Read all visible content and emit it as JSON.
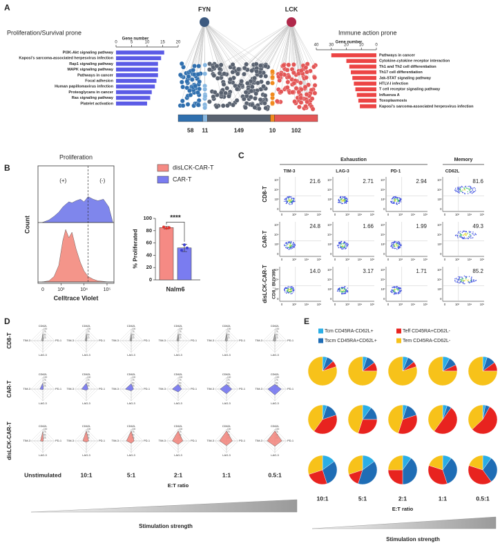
{
  "chart_data": [
    {
      "type": "hbar",
      "panel": "A",
      "title": "Proliferation/Survival prone",
      "xlabel": "Gene number",
      "categories": [
        "PI3K-Akt signaling pathway",
        "Kaposi's sarcoma-associated herpesvirus infection",
        "Rap1 signaling pathway",
        "MAPK signaling pathway",
        "Pathways in cancer",
        "Focal adhesion",
        "Human papillomavirus infection",
        "Proteoglycans in cancer",
        "Ras signaling pathway",
        "Platelet activation"
      ],
      "values": [
        15.5,
        14.5,
        13.5,
        13.5,
        13.5,
        13,
        12.5,
        11.5,
        11,
        10
      ],
      "color": "#5b5be6",
      "xlim": [
        0,
        20
      ],
      "xticks": [
        0,
        5,
        10,
        15,
        20
      ]
    },
    {
      "type": "hbar",
      "title": "Immune action prone",
      "xlabel": "Gene number",
      "categories": [
        "Pathways in cancer",
        "Cytokine-cytokine receptor interaction",
        "Th1 and Th2 cell differentiation",
        "Th17 cell differentiation",
        "Jak-STAT signaling pathway",
        "HTLV-I infection",
        "T cell receptor signaling pathway",
        "Influenza A",
        "Toxoplasmosis",
        "Kaposi's sarcoma-associated herpesvirus infection"
      ],
      "values": [
        30,
        20,
        18,
        17,
        16,
        15,
        14,
        13,
        12,
        11
      ],
      "color": "#ec4444",
      "xlim": [
        40,
        0
      ],
      "xticks": [
        40,
        30,
        20,
        10,
        0
      ]
    },
    {
      "type": "segments",
      "nodes": [
        "FYN",
        "LCK"
      ],
      "node_colors": [
        "#3d5a80",
        "#b0284a"
      ],
      "values": [
        58,
        11,
        149,
        10,
        102
      ],
      "colors": [
        "#2f6fae",
        "#86b6e0",
        "#596270",
        "#f08a1e",
        "#e35656"
      ]
    },
    {
      "type": "density",
      "panel": "B",
      "title": "Proliferation",
      "xlabel": "Celltrace Violet",
      "ylabel": "Count",
      "log_x": true,
      "xlim": [
        100,
        200000
      ],
      "xticks": [
        {
          "value": 1000,
          "label": "10³"
        },
        {
          "value": 10000,
          "label": "10⁴"
        },
        {
          "value": 100000,
          "label": "10⁵"
        }
      ],
      "zero_label": "0",
      "gate": 15000,
      "annotations": [
        "(+)",
        "(-)"
      ],
      "x": [
        150,
        300,
        500,
        800,
        1200,
        1600,
        2200,
        3000,
        4500,
        7000,
        10000,
        15000,
        25000,
        40000,
        70000,
        120000,
        180000
      ],
      "series": [
        {
          "color": "#7f86ec",
          "values": [
            0,
            0.05,
            0.12,
            0.2,
            0.3,
            0.35,
            0.4,
            0.38,
            0.42,
            0.45,
            0.4,
            0.5,
            0.45,
            0.42,
            0.45,
            0.3,
            0
          ]
        },
        {
          "color": "#f4958a",
          "values": [
            0,
            0.02,
            0.1,
            0.3,
            0.75,
            0.95,
            0.8,
            0.9,
            0.6,
            0.35,
            0.2,
            0.1,
            0.05,
            0.02,
            0.01,
            0,
            0
          ]
        }
      ]
    },
    {
      "type": "bar",
      "categories": [
        "Nalm6"
      ],
      "ylabel": "% Proliferated",
      "ylim": [
        0,
        100
      ],
      "yticks": [
        0,
        20,
        40,
        60,
        80,
        100
      ],
      "significance": "****",
      "series": [
        {
          "name": "disLCK-CAR-T",
          "color": "#f58a84",
          "values": [
            85
          ],
          "errors": [
            2
          ],
          "points": [
            86,
            84,
            85
          ]
        },
        {
          "name": "CAR-T",
          "color": "#7a7cf0",
          "values": [
            52
          ],
          "errors": [
            6
          ],
          "points": [
            48,
            57,
            52
          ]
        }
      ]
    },
    {
      "type": "flow-grid",
      "panel": "C",
      "groups": [
        "Exhaustion",
        "Memory"
      ],
      "columns": [
        "TIM-3",
        "LAG-3",
        "PD-1",
        "CD62L"
      ],
      "rows": [
        "CD8-T",
        "CAR-T",
        "disLCK-CAR-T"
      ],
      "ylabel": "CD8 : BUV395",
      "axis_labels": [
        "0",
        "10³",
        "10⁴",
        "10⁵"
      ],
      "values": [
        [
          21.6,
          2.71,
          2.94,
          81.6
        ],
        [
          24.8,
          1.66,
          1.99,
          49.3
        ],
        [
          14.0,
          3.17,
          1.71,
          85.2
        ]
      ],
      "value_labels": [
        [
          "21.6",
          "2.71",
          "2.94",
          "81.6"
        ],
        [
          "24.8",
          "1.66",
          "1.99",
          "49.3"
        ],
        [
          "14.0",
          "3.17",
          "1.71",
          "85.2"
        ]
      ]
    },
    {
      "type": "radar",
      "panel": "D",
      "axes": [
        "CD62L",
        "PD-1",
        "LAG-3",
        "TIM-3"
      ],
      "rlim": [
        0,
        100
      ],
      "rticks": [
        25,
        50,
        75,
        100
      ],
      "rows": [
        "CD8-T",
        "CAR-T",
        "disLCK-CAR-T"
      ],
      "row_colors": [
        "#9a9a9a",
        "#6d6ef0",
        "#f2837a"
      ],
      "columns": [
        "Unstimulated",
        "10:1",
        "5:1",
        "2:1",
        "1:1",
        "0.5:1"
      ],
      "xlabel": "E:T ratio",
      "footer": "Stimulation strength",
      "values": [
        [
          [
            60,
            5,
            5,
            10
          ],
          [
            60,
            6,
            5,
            10
          ],
          [
            62,
            6,
            5,
            12
          ],
          [
            60,
            7,
            6,
            12
          ],
          [
            62,
            8,
            6,
            12
          ],
          [
            60,
            8,
            6,
            14
          ]
        ],
        [
          [
            50,
            5,
            5,
            25
          ],
          [
            50,
            15,
            10,
            40
          ],
          [
            45,
            20,
            15,
            50
          ],
          [
            40,
            30,
            25,
            50
          ],
          [
            40,
            45,
            40,
            55
          ],
          [
            40,
            55,
            50,
            60
          ]
        ],
        [
          [
            80,
            5,
            5,
            20
          ],
          [
            85,
            20,
            10,
            30
          ],
          [
            85,
            25,
            20,
            40
          ],
          [
            85,
            40,
            30,
            50
          ],
          [
            85,
            50,
            40,
            60
          ],
          [
            85,
            60,
            45,
            65
          ]
        ]
      ]
    },
    {
      "type": "pie",
      "panel": "E",
      "categories": [
        "Tcm CD45RA-CD62L+",
        "Tscm CD45RA+CD62L+",
        "Teff CD45RA+CD62L-",
        "Tem CD45RA-CD62L-"
      ],
      "colors": [
        "#2aaee6",
        "#1f6db5",
        "#e8231f",
        "#f7c21a"
      ],
      "columns": [
        "10:1",
        "5:1",
        "2:1",
        "1:1",
        "0.5:1"
      ],
      "xlabel": "E:T ratio",
      "footer": "Stimulation strength",
      "values": [
        [
          [
            5,
            8,
            7,
            80
          ],
          [
            5,
            10,
            10,
            75
          ],
          [
            6,
            8,
            6,
            80
          ],
          [
            8,
            10,
            7,
            75
          ],
          [
            5,
            10,
            10,
            75
          ]
        ],
        [
          [
            5,
            15,
            40,
            40
          ],
          [
            10,
            15,
            30,
            45
          ],
          [
            5,
            15,
            35,
            45
          ],
          [
            5,
            5,
            50,
            40
          ],
          [
            3,
            5,
            55,
            37
          ]
        ],
        [
          [
            15,
            30,
            25,
            30
          ],
          [
            15,
            40,
            15,
            30
          ],
          [
            10,
            40,
            25,
            25
          ],
          [
            10,
            35,
            35,
            20
          ],
          [
            10,
            30,
            40,
            20
          ]
        ]
      ]
    }
  ]
}
